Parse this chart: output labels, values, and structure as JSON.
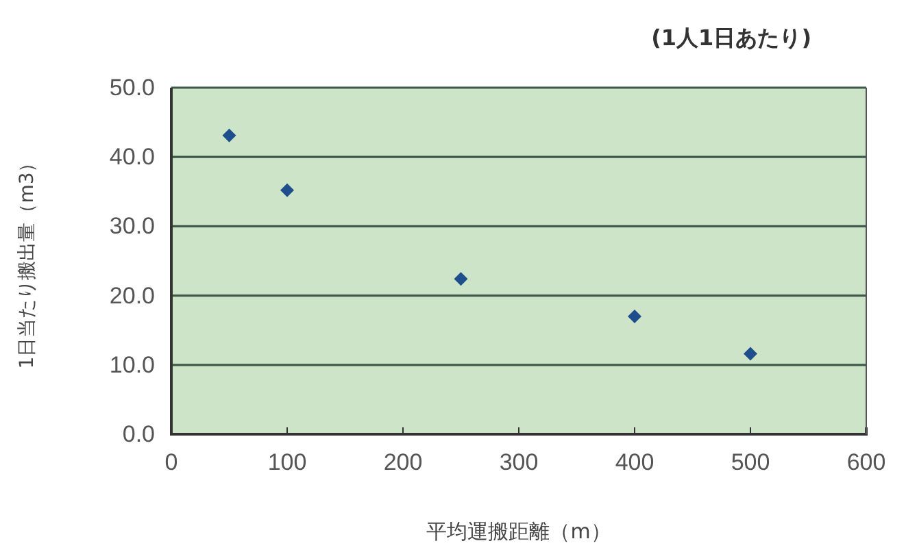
{
  "chart_data": {
    "type": "scatter",
    "subtitle": "(1人1日あたり)",
    "xlabel": "平均運搬距離（m）",
    "ylabel": "1日当たり搬出量（m3）",
    "x": [
      50,
      100,
      250,
      400,
      500
    ],
    "series": [
      {
        "color": "#1f4e8c",
        "values": [
          43.1,
          35.2,
          22.4,
          17.0,
          11.6
        ]
      }
    ],
    "xlim": [
      0,
      600
    ],
    "xticks": [
      0,
      100,
      200,
      300,
      400,
      500,
      600
    ],
    "ylim": [
      0,
      50
    ],
    "yticks": [
      {
        "value": 0,
        "label": "0.0"
      },
      {
        "value": 10,
        "label": "10.0"
      },
      {
        "value": 20,
        "label": "20.0"
      },
      {
        "value": 30,
        "label": "30.0"
      },
      {
        "value": 40,
        "label": "40.0"
      },
      {
        "value": 50,
        "label": "50.0"
      }
    ],
    "grid": "y",
    "marker": "diamond"
  }
}
